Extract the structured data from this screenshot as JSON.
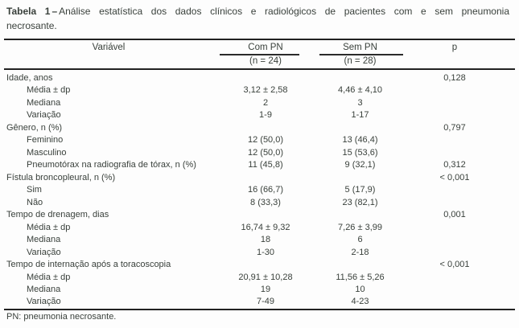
{
  "title": {
    "label": "Tabela 1",
    "dash": "–",
    "text": "Análise estatística dos dados clínicos e radiológicos de pacientes com e sem pneumonia necrosante."
  },
  "table": {
    "columns": {
      "variable": "Variável",
      "group1": {
        "name": "Com PN",
        "n": "(n = 24)"
      },
      "group2": {
        "name": "Sem PN",
        "n": "(n = 28)"
      },
      "p": "p"
    },
    "rows": [
      {
        "label": "Idade, anos",
        "indent": false,
        "com": "",
        "sem": "",
        "p": "0,128"
      },
      {
        "label": "Média ± dp",
        "indent": true,
        "com": "3,12 ± 2,58",
        "sem": "4,46 ± 4,10",
        "p": ""
      },
      {
        "label": "Mediana",
        "indent": true,
        "com": "2",
        "sem": "3",
        "p": ""
      },
      {
        "label": "Variação",
        "indent": true,
        "com": "1-9",
        "sem": "1-17",
        "p": ""
      },
      {
        "label": "Gênero, n (%)",
        "indent": false,
        "com": "",
        "sem": "",
        "p": "0,797"
      },
      {
        "label": "Feminino",
        "indent": true,
        "com": "12 (50,0)",
        "sem": "13 (46,4)",
        "p": ""
      },
      {
        "label": "Masculino",
        "indent": true,
        "com": "12 (50,0)",
        "sem": "15 (53,6)",
        "p": ""
      },
      {
        "label": "Pneumotórax na radiografia de tórax, n (%)",
        "indent": true,
        "com": "11 (45,8)",
        "sem": "9 (32,1)",
        "p": "0,312"
      },
      {
        "label": "Fístula broncopleural, n (%)",
        "indent": false,
        "com": "",
        "sem": "",
        "p": "< 0,001"
      },
      {
        "label": "Sim",
        "indent": true,
        "com": "16 (66,7)",
        "sem": "5 (17,9)",
        "p": ""
      },
      {
        "label": "Não",
        "indent": true,
        "com": "8 (33,3)",
        "sem": "23 (82,1)",
        "p": ""
      },
      {
        "label": "Tempo de drenagem, dias",
        "indent": false,
        "com": "",
        "sem": "",
        "p": "0,001"
      },
      {
        "label": "Média ± dp",
        "indent": true,
        "com": "16,74 ± 9,32",
        "sem": "7,26 ± 3,99",
        "p": ""
      },
      {
        "label": "Mediana",
        "indent": true,
        "com": "18",
        "sem": "6",
        "p": ""
      },
      {
        "label": "Variação",
        "indent": true,
        "com": "1-30",
        "sem": "2-18",
        "p": ""
      },
      {
        "label": "Tempo de internação após a toracoscopia",
        "indent": false,
        "com": "",
        "sem": "",
        "p": "< 0,001"
      },
      {
        "label": "Média ± dp",
        "indent": true,
        "com": "20,91 ± 10,28",
        "sem": "11,56 ± 5,26",
        "p": ""
      },
      {
        "label": "Mediana",
        "indent": true,
        "com": "19",
        "sem": "10",
        "p": ""
      },
      {
        "label": "Variação",
        "indent": true,
        "com": "7-49",
        "sem": "4-23",
        "p": ""
      }
    ],
    "footnote": "PN: pneumonia necrosante."
  },
  "colors": {
    "text": "#39403b",
    "rule": "#222222",
    "background": "#fdfdfd"
  }
}
